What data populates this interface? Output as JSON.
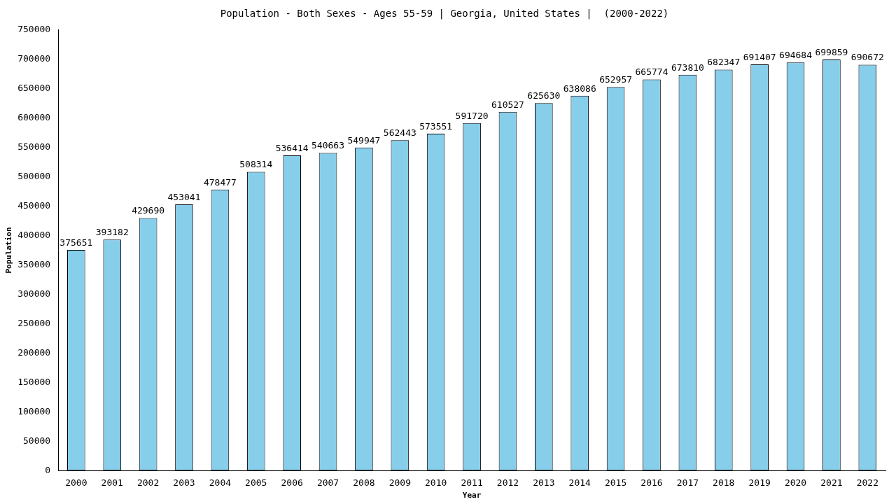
{
  "chart_data": {
    "type": "bar",
    "title": "Population - Both Sexes - Ages 55-59 | Georgia, United States |  (2000-2022)",
    "x_label": "Year",
    "y_label": "Population",
    "categories": [
      "2000",
      "2001",
      "2002",
      "2003",
      "2004",
      "2005",
      "2006",
      "2007",
      "2008",
      "2009",
      "2010",
      "2011",
      "2012",
      "2013",
      "2014",
      "2015",
      "2016",
      "2017",
      "2018",
      "2019",
      "2020",
      "2021",
      "2022"
    ],
    "values": [
      375651,
      393182,
      429690,
      453041,
      478477,
      508314,
      536414,
      540663,
      549947,
      562443,
      573551,
      591720,
      610527,
      625630,
      638086,
      652957,
      665774,
      673810,
      682347,
      691407,
      694684,
      699859,
      690672
    ],
    "color": "#87ceeb",
    "ylim": [
      0,
      750000
    ],
    "yticks": [
      0,
      50000,
      100000,
      150000,
      200000,
      250000,
      300000,
      350000,
      400000,
      450000,
      500000,
      550000,
      600000,
      650000,
      700000,
      750000
    ],
    "grid": false,
    "data_labels": true
  }
}
